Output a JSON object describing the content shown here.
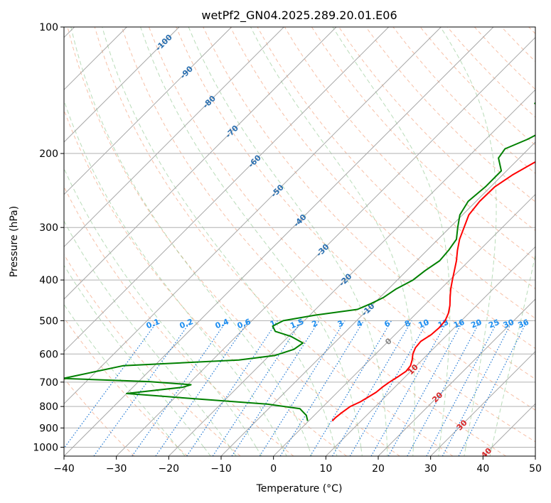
{
  "chart_data": {
    "type": "line",
    "title": "wetPf2_GN04.2025.289.20.01.E06",
    "xlabel": "Temperature (°C)",
    "ylabel": "Pressure (hPa)",
    "xlim": [
      -40,
      50
    ],
    "ylim": [
      1050,
      100
    ],
    "y_scale": "log",
    "x_ticks": [
      -40,
      -30,
      -20,
      -10,
      0,
      10,
      20,
      30,
      40,
      50
    ],
    "x_tick_labels": [
      "−40",
      "−30",
      "−20",
      "−10",
      "0",
      "10",
      "20",
      "30",
      "40",
      "50"
    ],
    "y_ticks": [
      100,
      200,
      300,
      400,
      500,
      600,
      700,
      800,
      900,
      1000
    ],
    "y_tick_labels": [
      "100",
      "200",
      "300",
      "400",
      "500",
      "600",
      "700",
      "800",
      "900",
      "1000"
    ],
    "grid": true,
    "background_lines": {
      "isotherms": "gray solid (skewed)",
      "dry_adiabats": "orange-red dashed",
      "moist_adiabats": "green dashed",
      "mixing_ratio": "blue dotted"
    },
    "isotherm_labels": [
      {
        "t": -100,
        "text": "-100"
      },
      {
        "t": -90,
        "text": "-90"
      },
      {
        "t": -80,
        "text": "-80"
      },
      {
        "t": -70,
        "text": "-70"
      },
      {
        "t": -60,
        "text": "-60"
      },
      {
        "t": -50,
        "text": "-50"
      },
      {
        "t": -40,
        "text": "-40"
      },
      {
        "t": -30,
        "text": "-30"
      },
      {
        "t": -20,
        "text": "-20"
      },
      {
        "t": -10,
        "text": "-10"
      },
      {
        "t": 0,
        "text": "0"
      },
      {
        "t": 10,
        "text": "10"
      },
      {
        "t": 20,
        "text": "20"
      },
      {
        "t": 30,
        "text": "30"
      },
      {
        "t": 40,
        "text": "40"
      }
    ],
    "mixing_ratio_labels": [
      "0.1",
      "0.2",
      "0.4",
      "0.6",
      "1",
      "1.5",
      "2",
      "3",
      "4",
      "6",
      "8",
      "10",
      "13",
      "16",
      "20",
      "25",
      "30",
      "36"
    ],
    "series": [
      {
        "color": "#ff0000",
        "points": [
          [
            866,
            4.5
          ],
          [
            850,
            4.5
          ],
          [
            830,
            4.7
          ],
          [
            800,
            5.2
          ],
          [
            780,
            6.2
          ],
          [
            760,
            6.8
          ],
          [
            740,
            7.4
          ],
          [
            720,
            7.6
          ],
          [
            700,
            8.0
          ],
          [
            680,
            8.6
          ],
          [
            660,
            9.1
          ],
          [
            640,
            8.9
          ],
          [
            620,
            8.1
          ],
          [
            600,
            7.1
          ],
          [
            580,
            6.4
          ],
          [
            560,
            6.2
          ],
          [
            540,
            6.9
          ],
          [
            520,
            7.1
          ],
          [
            500,
            6.9
          ],
          [
            480,
            6.1
          ],
          [
            460,
            4.9
          ],
          [
            440,
            3.4
          ],
          [
            420,
            1.9
          ],
          [
            400,
            0.5
          ],
          [
            380,
            -0.9
          ],
          [
            360,
            -2.4
          ],
          [
            340,
            -4.2
          ],
          [
            320,
            -5.9
          ],
          [
            300,
            -7.3
          ],
          [
            280,
            -8.8
          ],
          [
            260,
            -9.3
          ],
          [
            240,
            -9.2
          ],
          [
            225,
            -8.1
          ],
          [
            210,
            -6.3
          ],
          [
            195,
            -3.5
          ],
          [
            185,
            -2.5
          ],
          [
            175,
            -0.2
          ],
          [
            165,
            3.2
          ],
          [
            155,
            6.5
          ],
          [
            145,
            8.5
          ],
          [
            135,
            10.0
          ],
          [
            125,
            12.5
          ],
          [
            115,
            15.0
          ],
          [
            108,
            17.5
          ],
          [
            100,
            20.0
          ]
        ]
      },
      {
        "color": "#008000",
        "points": [
          [
            866,
            -0.2
          ],
          [
            840,
            -1.5
          ],
          [
            810,
            -4.0
          ],
          [
            790,
            -11.0
          ],
          [
            770,
            -24.0
          ],
          [
            745,
            -40.0
          ],
          [
            720,
            -30.5
          ],
          [
            710,
            -29.4
          ],
          [
            698,
            -38.0
          ],
          [
            686,
            -55.0
          ],
          [
            640,
            -46.0
          ],
          [
            620,
            -25.0
          ],
          [
            605,
            -19.0
          ],
          [
            585,
            -16.5
          ],
          [
            565,
            -16.0
          ],
          [
            545,
            -19.5
          ],
          [
            530,
            -23.5
          ],
          [
            515,
            -25.0
          ],
          [
            500,
            -24.0
          ],
          [
            485,
            -19.0
          ],
          [
            470,
            -12.0
          ],
          [
            455,
            -10.5
          ],
          [
            440,
            -9.3
          ],
          [
            420,
            -8.5
          ],
          [
            400,
            -7.0
          ],
          [
            380,
            -6.5
          ],
          [
            360,
            -5.6
          ],
          [
            340,
            -5.9
          ],
          [
            320,
            -6.5
          ],
          [
            300,
            -8.5
          ],
          [
            280,
            -10.5
          ],
          [
            260,
            -11.5
          ],
          [
            240,
            -11.0
          ],
          [
            220,
            -11.0
          ],
          [
            205,
            -14.0
          ],
          [
            195,
            -14.5
          ],
          [
            185,
            -12.0
          ],
          [
            175,
            -10.2
          ],
          [
            167,
            -11.0
          ],
          [
            160,
            -13.0
          ],
          [
            152,
            -17.5
          ],
          [
            145,
            -17.3
          ],
          [
            138,
            -14.0
          ],
          [
            130,
            -11.5
          ],
          [
            120,
            -8.0
          ],
          [
            112,
            -5.5
          ],
          [
            105,
            -2.0
          ],
          [
            100,
            2.0
          ]
        ]
      }
    ]
  }
}
